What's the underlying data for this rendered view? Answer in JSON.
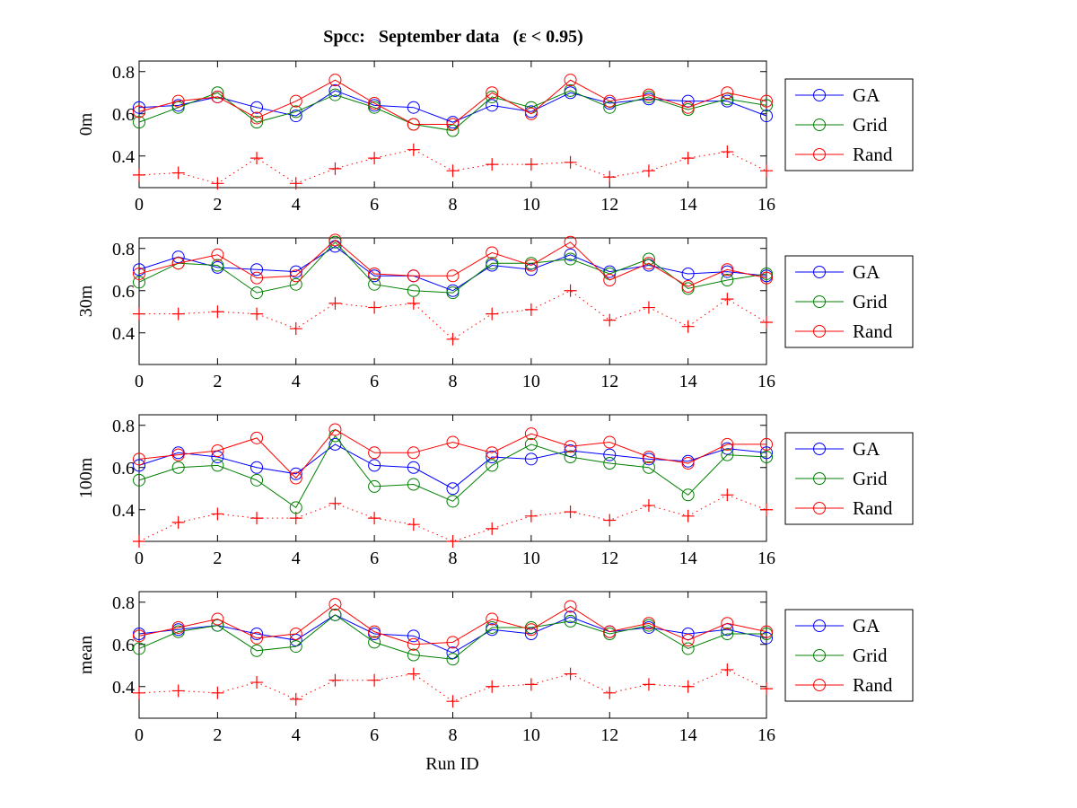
{
  "chart_data": {
    "type": "line",
    "title": "Spcc:   September data   (ε < 0.95)",
    "xlabel": "Run ID",
    "x": [
      0,
      1,
      2,
      3,
      4,
      5,
      6,
      7,
      8,
      9,
      10,
      11,
      12,
      13,
      14,
      15,
      16
    ],
    "xlim": [
      0,
      16
    ],
    "xticks": [
      0,
      2,
      4,
      6,
      8,
      10,
      12,
      14,
      16
    ],
    "xtick_labels": [
      "0",
      "2",
      "4",
      "6",
      "8",
      "10",
      "12",
      "14",
      "16"
    ],
    "ylim": [
      0.25,
      0.85
    ],
    "yticks": [
      0.4,
      0.6,
      0.8
    ],
    "ytick_labels": [
      "0.4",
      "0.6",
      "0.8"
    ],
    "grid": false,
    "legend_placement": "outside-right",
    "colors": {
      "GA": "#0000ff",
      "Grid": "#008000",
      "Rand": "#ff0000",
      "baseline": "#ff0000"
    },
    "subplots": [
      {
        "ylabel": "0m",
        "legend": [
          "GA",
          "Grid",
          "Rand"
        ],
        "series": [
          {
            "name": "GA",
            "marker": "circle",
            "line": "solid",
            "values": [
              0.63,
              0.64,
              0.68,
              0.63,
              0.59,
              0.71,
              0.64,
              0.63,
              0.56,
              0.64,
              0.61,
              0.7,
              0.65,
              0.67,
              0.66,
              0.66,
              0.59
            ]
          },
          {
            "name": "Grid",
            "marker": "circle",
            "line": "solid",
            "values": [
              0.56,
              0.63,
              0.7,
              0.56,
              0.61,
              0.69,
              0.63,
              0.55,
              0.52,
              0.68,
              0.63,
              0.71,
              0.63,
              0.68,
              0.62,
              0.67,
              0.64
            ]
          },
          {
            "name": "Rand",
            "marker": "circle",
            "line": "solid",
            "values": [
              0.61,
              0.66,
              0.68,
              0.58,
              0.66,
              0.76,
              0.65,
              0.55,
              0.55,
              0.7,
              0.6,
              0.76,
              0.66,
              0.69,
              0.63,
              0.7,
              0.66
            ]
          },
          {
            "name": "baseline",
            "marker": "plus",
            "line": "dotted",
            "values": [
              0.31,
              0.32,
              0.27,
              0.39,
              0.27,
              0.34,
              0.39,
              0.43,
              0.33,
              0.36,
              0.36,
              0.37,
              0.3,
              0.33,
              0.39,
              0.42,
              0.33
            ]
          }
        ]
      },
      {
        "ylabel": "30m",
        "legend": [
          "GA",
          "Grid",
          "Rand"
        ],
        "series": [
          {
            "name": "GA",
            "marker": "circle",
            "line": "solid",
            "values": [
              0.7,
              0.76,
              0.71,
              0.7,
              0.69,
              0.81,
              0.67,
              0.67,
              0.6,
              0.72,
              0.7,
              0.77,
              0.69,
              0.72,
              0.68,
              0.69,
              0.67
            ]
          },
          {
            "name": "Grid",
            "marker": "circle",
            "line": "solid",
            "values": [
              0.64,
              0.73,
              0.72,
              0.59,
              0.63,
              0.83,
              0.63,
              0.6,
              0.59,
              0.73,
              0.73,
              0.75,
              0.68,
              0.75,
              0.61,
              0.65,
              0.68
            ]
          },
          {
            "name": "Rand",
            "marker": "circle",
            "line": "solid",
            "values": [
              0.68,
              0.73,
              0.77,
              0.66,
              0.67,
              0.84,
              0.68,
              0.67,
              0.67,
              0.78,
              0.72,
              0.83,
              0.65,
              0.73,
              0.62,
              0.7,
              0.66
            ]
          },
          {
            "name": "baseline",
            "marker": "plus",
            "line": "dotted",
            "values": [
              0.49,
              0.49,
              0.5,
              0.49,
              0.42,
              0.54,
              0.52,
              0.54,
              0.37,
              0.49,
              0.51,
              0.6,
              0.46,
              0.52,
              0.43,
              0.56,
              0.45
            ]
          }
        ]
      },
      {
        "ylabel": "100m",
        "legend": [
          "GA",
          "Grid",
          "Rand"
        ],
        "series": [
          {
            "name": "GA",
            "marker": "circle",
            "line": "solid",
            "values": [
              0.61,
              0.67,
              0.65,
              0.6,
              0.57,
              0.71,
              0.61,
              0.6,
              0.5,
              0.65,
              0.64,
              0.68,
              0.66,
              0.64,
              0.63,
              0.69,
              0.67
            ]
          },
          {
            "name": "Grid",
            "marker": "circle",
            "line": "solid",
            "values": [
              0.54,
              0.6,
              0.61,
              0.54,
              0.41,
              0.75,
              0.51,
              0.52,
              0.44,
              0.61,
              0.71,
              0.65,
              0.62,
              0.6,
              0.47,
              0.66,
              0.65
            ]
          },
          {
            "name": "Rand",
            "marker": "circle",
            "line": "solid",
            "values": [
              0.64,
              0.66,
              0.68,
              0.74,
              0.55,
              0.78,
              0.67,
              0.67,
              0.72,
              0.67,
              0.76,
              0.7,
              0.72,
              0.65,
              0.62,
              0.71,
              0.71
            ]
          },
          {
            "name": "baseline",
            "marker": "plus",
            "line": "dotted",
            "values": [
              0.25,
              0.34,
              0.38,
              0.36,
              0.36,
              0.43,
              0.36,
              0.33,
              0.25,
              0.31,
              0.37,
              0.39,
              0.35,
              0.42,
              0.37,
              0.47,
              0.4
            ]
          }
        ]
      },
      {
        "ylabel": "mean",
        "legend": [
          "GA",
          "Grid",
          "Rand"
        ],
        "series": [
          {
            "name": "GA",
            "marker": "circle",
            "line": "solid",
            "values": [
              0.65,
              0.67,
              0.69,
              0.65,
              0.62,
              0.74,
              0.65,
              0.64,
              0.56,
              0.67,
              0.65,
              0.73,
              0.66,
              0.68,
              0.65,
              0.67,
              0.63
            ]
          },
          {
            "name": "Grid",
            "marker": "circle",
            "line": "solid",
            "values": [
              0.58,
              0.66,
              0.69,
              0.57,
              0.59,
              0.74,
              0.61,
              0.55,
              0.53,
              0.68,
              0.68,
              0.71,
              0.65,
              0.69,
              0.58,
              0.65,
              0.65
            ]
          },
          {
            "name": "Rand",
            "marker": "circle",
            "line": "solid",
            "values": [
              0.64,
              0.68,
              0.72,
              0.63,
              0.65,
              0.79,
              0.66,
              0.6,
              0.61,
              0.72,
              0.67,
              0.78,
              0.66,
              0.7,
              0.62,
              0.7,
              0.66
            ]
          },
          {
            "name": "baseline",
            "marker": "plus",
            "line": "dotted",
            "values": [
              0.37,
              0.38,
              0.37,
              0.42,
              0.34,
              0.43,
              0.43,
              0.46,
              0.33,
              0.4,
              0.41,
              0.46,
              0.37,
              0.41,
              0.4,
              0.48,
              0.39
            ]
          }
        ]
      }
    ]
  }
}
